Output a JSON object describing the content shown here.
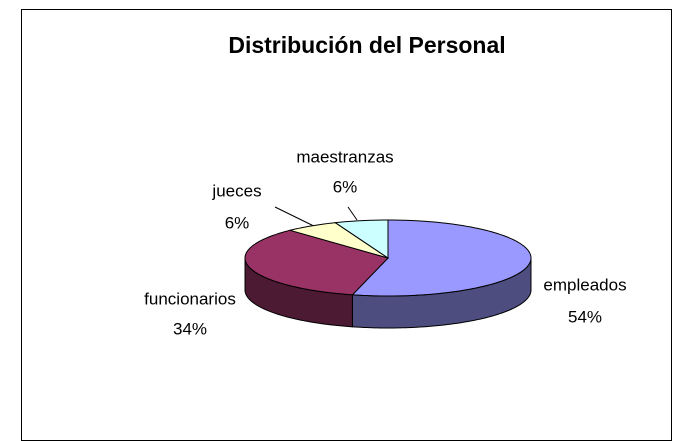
{
  "chart_data": {
    "type": "pie",
    "title": "Distribución del Personal",
    "categories": [
      "empleados",
      "funcionarios",
      "jueces",
      "maestranzas"
    ],
    "values": [
      54,
      34,
      6,
      6
    ],
    "value_labels": [
      "54%",
      "34%",
      "6%",
      "6%"
    ],
    "colors": [
      "#9999ff",
      "#993366",
      "#ffffcc",
      "#ccffff"
    ],
    "side_colors": [
      "#4d4d80",
      "#4d1a33",
      "#80806a",
      "#6a8080"
    ]
  }
}
